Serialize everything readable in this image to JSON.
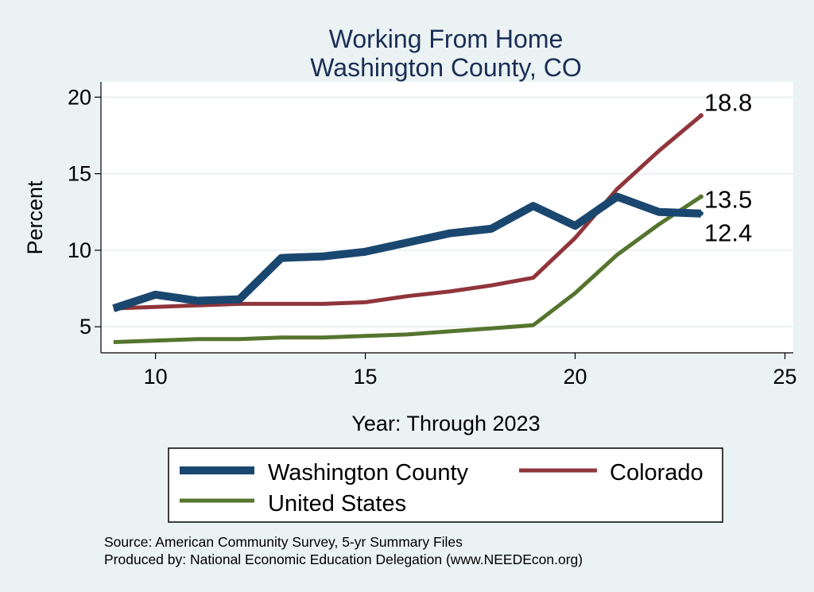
{
  "chart_data": {
    "type": "line",
    "title": "Working From Home",
    "subtitle": "Washington County, CO",
    "xlabel": "Year: Through 2023",
    "ylabel": "Percent",
    "xlim": [
      8.7,
      25.2
    ],
    "ylim": [
      3.3,
      21.0
    ],
    "xticks": [
      10,
      15,
      20,
      25
    ],
    "yticks": [
      5,
      10,
      15,
      20
    ],
    "grid": true,
    "legend": "bottom",
    "x": [
      9,
      10,
      11,
      12,
      13,
      14,
      15,
      16,
      17,
      18,
      19,
      20,
      21,
      22,
      23
    ],
    "series": [
      {
        "name": "Washington County",
        "color": "#1a476f",
        "values": [
          6.2,
          7.1,
          6.7,
          6.8,
          9.5,
          9.6,
          9.9,
          10.5,
          11.1,
          11.4,
          12.9,
          11.6,
          13.5,
          12.5,
          12.4
        ],
        "end_label": "12.4"
      },
      {
        "name": "Colorado",
        "color": "#90353b",
        "values": [
          6.2,
          6.3,
          6.4,
          6.5,
          6.5,
          6.5,
          6.6,
          7.0,
          7.3,
          7.7,
          8.2,
          10.8,
          14.0,
          16.5,
          18.8
        ],
        "end_label": "18.8"
      },
      {
        "name": "United States",
        "color": "#55752f",
        "values": [
          4.0,
          4.1,
          4.2,
          4.2,
          4.3,
          4.3,
          4.4,
          4.5,
          4.7,
          4.9,
          5.1,
          7.2,
          9.7,
          11.7,
          13.5
        ],
        "end_label": "13.5"
      }
    ]
  },
  "source_lines": [
    "Source: American Community Survey, 5-yr Summary Files",
    "Produced by: National Economic Education Delegation (www.NEEDEcon.org)"
  ]
}
